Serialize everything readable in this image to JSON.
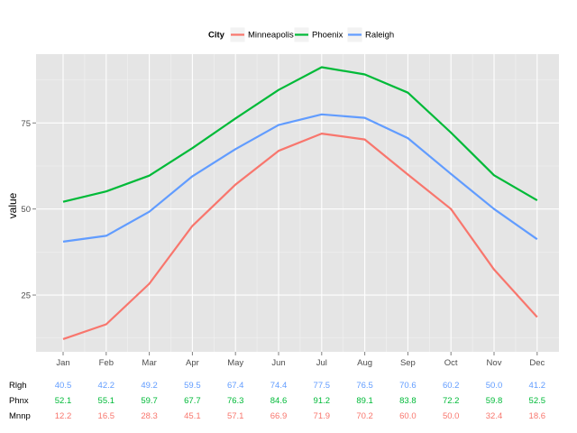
{
  "chart_data": {
    "type": "line",
    "categories": [
      "Jan",
      "Feb",
      "Mar",
      "Apr",
      "May",
      "Jun",
      "Jul",
      "Aug",
      "Sep",
      "Oct",
      "Nov",
      "Dec"
    ],
    "ylabel": "value",
    "xlabel": "",
    "ylim": [
      8.5,
      95
    ],
    "yticks": [
      25,
      50,
      75
    ],
    "grid": true,
    "legend": {
      "title": "City",
      "position": "top",
      "entries": [
        "Minneapolis",
        "Phoenix",
        "Raleigh"
      ]
    },
    "series": [
      {
        "name": "Minneapolis",
        "color": "#f8766d",
        "values": [
          12.2,
          16.5,
          28.3,
          45.1,
          57.1,
          66.9,
          71.9,
          70.2,
          60.0,
          50.0,
          32.4,
          18.6
        ]
      },
      {
        "name": "Phoenix",
        "color": "#00ba38",
        "values": [
          52.1,
          55.1,
          59.7,
          67.7,
          76.3,
          84.6,
          91.2,
          89.1,
          83.8,
          72.2,
          59.8,
          52.5
        ]
      },
      {
        "name": "Raleigh",
        "color": "#619cff",
        "values": [
          40.5,
          42.2,
          49.2,
          59.5,
          67.4,
          74.4,
          77.5,
          76.5,
          70.6,
          60.2,
          50.0,
          41.2
        ]
      }
    ],
    "table": {
      "rows": [
        {
          "label": "Rlgh",
          "series": "Raleigh",
          "color": "#619cff",
          "values": [
            "40.5",
            "42.2",
            "49.2",
            "59.5",
            "67.4",
            "74.4",
            "77.5",
            "76.5",
            "70.6",
            "60.2",
            "50.0",
            "41.2"
          ]
        },
        {
          "label": "Phnx",
          "series": "Phoenix",
          "color": "#00ba38",
          "values": [
            "52.1",
            "55.1",
            "59.7",
            "67.7",
            "76.3",
            "84.6",
            "91.2",
            "89.1",
            "83.8",
            "72.2",
            "59.8",
            "52.5"
          ]
        },
        {
          "label": "Mnnp",
          "series": "Minneapolis",
          "color": "#f8766d",
          "values": [
            "12.2",
            "16.5",
            "28.3",
            "45.1",
            "57.1",
            "66.9",
            "71.9",
            "70.2",
            "60.0",
            "50.0",
            "32.4",
            "18.6"
          ]
        }
      ]
    }
  },
  "colors": {
    "panel_background": "#e5e5e5",
    "grid_major": "#ffffff",
    "grid_minor": "#f2f2f2"
  }
}
